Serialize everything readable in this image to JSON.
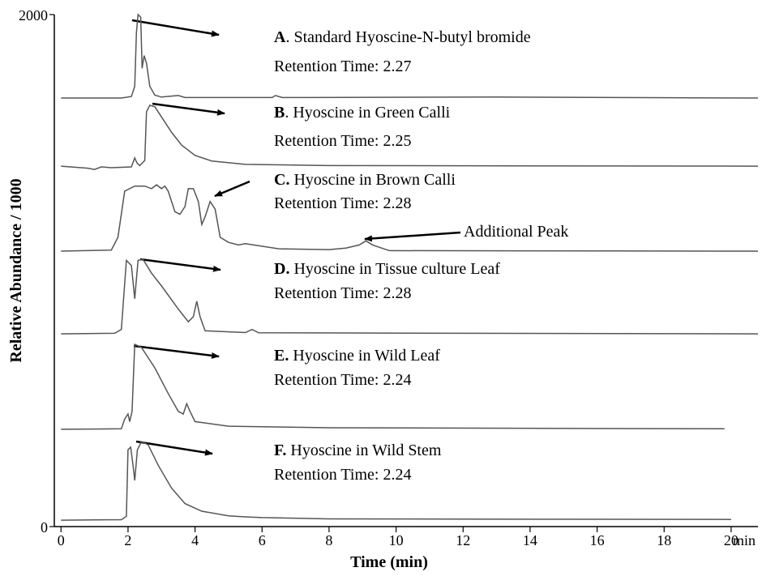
{
  "chart_data": {
    "type": "line",
    "y_label": "Relative Abundance / 1000",
    "x_label": "Time (min)",
    "x_unit": "min",
    "xlim": [
      -0.2,
      20.8
    ],
    "ylim": [
      0,
      2000
    ],
    "xticks": [
      0,
      2,
      4,
      6,
      8,
      10,
      12,
      14,
      16,
      18,
      20
    ],
    "yticks": [
      0,
      2000
    ],
    "series": [
      {
        "color": "#555555",
        "x": [
          0,
          1.8,
          2.1,
          2.2,
          2.25,
          2.3,
          2.38,
          2.42,
          2.48,
          2.55,
          2.65,
          2.8,
          3,
          3.5,
          3.7,
          6.3,
          6.4,
          6.6,
          13,
          20.8
        ],
        "values": [
          1674,
          1674,
          1680,
          1720,
          1930,
          2000,
          1990,
          1790,
          1840,
          1810,
          1720,
          1685,
          1678,
          1684,
          1676,
          1676,
          1684,
          1676,
          1678,
          1674
        ]
      },
      {
        "color": "#555555",
        "x": [
          0,
          0.8,
          1,
          1.2,
          1.5,
          2.1,
          2.2,
          2.27,
          2.35,
          2.5,
          2.55,
          2.65,
          2.8,
          3,
          3.3,
          3.6,
          4,
          4.5,
          5.5,
          8,
          20.8
        ],
        "values": [
          1408,
          1400,
          1395,
          1405,
          1402,
          1405,
          1440,
          1420,
          1410,
          1430,
          1620,
          1646,
          1640,
          1600,
          1540,
          1490,
          1450,
          1428,
          1415,
          1410,
          1408
        ]
      },
      {
        "color": "#555555",
        "x": [
          0,
          1.5,
          1.7,
          1.9,
          2.2,
          2.5,
          2.7,
          2.85,
          3,
          3.1,
          3.2,
          3.4,
          3.55,
          3.7,
          3.8,
          3.95,
          4.1,
          4.2,
          4.3,
          4.45,
          4.6,
          4.75,
          5,
          5.3,
          5.5,
          6.5,
          8,
          8.5,
          8.9,
          9.1,
          9.3,
          9.8,
          20.8
        ],
        "values": [
          1076,
          1080,
          1130,
          1310,
          1330,
          1330,
          1320,
          1335,
          1320,
          1330,
          1310,
          1230,
          1220,
          1250,
          1320,
          1320,
          1270,
          1180,
          1210,
          1270,
          1240,
          1130,
          1110,
          1100,
          1105,
          1085,
          1082,
          1088,
          1100,
          1116,
          1100,
          1078,
          1076
        ]
      },
      {
        "color": "#555555",
        "x": [
          0,
          1.6,
          1.8,
          1.95,
          2.1,
          2.2,
          2.3,
          2.45,
          2.7,
          3,
          3.5,
          3.8,
          3.95,
          4.05,
          4.15,
          4.3,
          5.5,
          5.7,
          5.9,
          20.8
        ],
        "values": [
          753,
          755,
          770,
          1040,
          1020,
          890,
          1040,
          1044,
          990,
          940,
          850,
          800,
          820,
          880,
          820,
          765,
          758,
          770,
          757,
          753
        ]
      },
      {
        "color": "#555555",
        "x": [
          0,
          1.8,
          1.9,
          2,
          2.05,
          2.12,
          2.2,
          2.4,
          2.8,
          3.2,
          3.5,
          3.65,
          3.75,
          3.85,
          4,
          5,
          8,
          19.8
        ],
        "values": [
          380,
          382,
          420,
          440,
          410,
          450,
          712,
          700,
          620,
          520,
          450,
          440,
          480,
          450,
          410,
          392,
          386,
          382
        ]
      },
      {
        "color": "#555555",
        "x": [
          0,
          1.8,
          1.95,
          2,
          2.08,
          2.15,
          2.2,
          2.28,
          2.4,
          2.6,
          2.9,
          3.3,
          3.7,
          4.2,
          5,
          5.5,
          6,
          8,
          20
        ],
        "values": [
          25,
          27,
          40,
          300,
          310,
          240,
          180,
          300,
          332,
          320,
          240,
          150,
          90,
          60,
          42,
          38,
          35,
          30,
          28
        ]
      }
    ],
    "annotations": [
      {
        "label": "A",
        "text": ". Standard Hyoscine-N-butyl bromide",
        "sub": "Retention Time: 2.27"
      },
      {
        "label": "B",
        "text": ". Hyoscine in Green Calli",
        "sub": "Retention Time: 2.25"
      },
      {
        "label": "C.",
        "text": " Hyoscine in Brown Calli",
        "sub": "Retention Time: 2.28"
      },
      {
        "label": "D.",
        "text": " Hyoscine in Tissue culture Leaf",
        "sub": "Retention Time: 2.28"
      },
      {
        "label": "E.",
        "text": " Hyoscine in Wild Leaf",
        "sub": "Retention Time: 2.24"
      },
      {
        "label": "F.",
        "text": " Hyoscine in Wild Stem",
        "sub": "Retention Time: 2.24"
      }
    ],
    "peak_note": "Additional Peak"
  }
}
